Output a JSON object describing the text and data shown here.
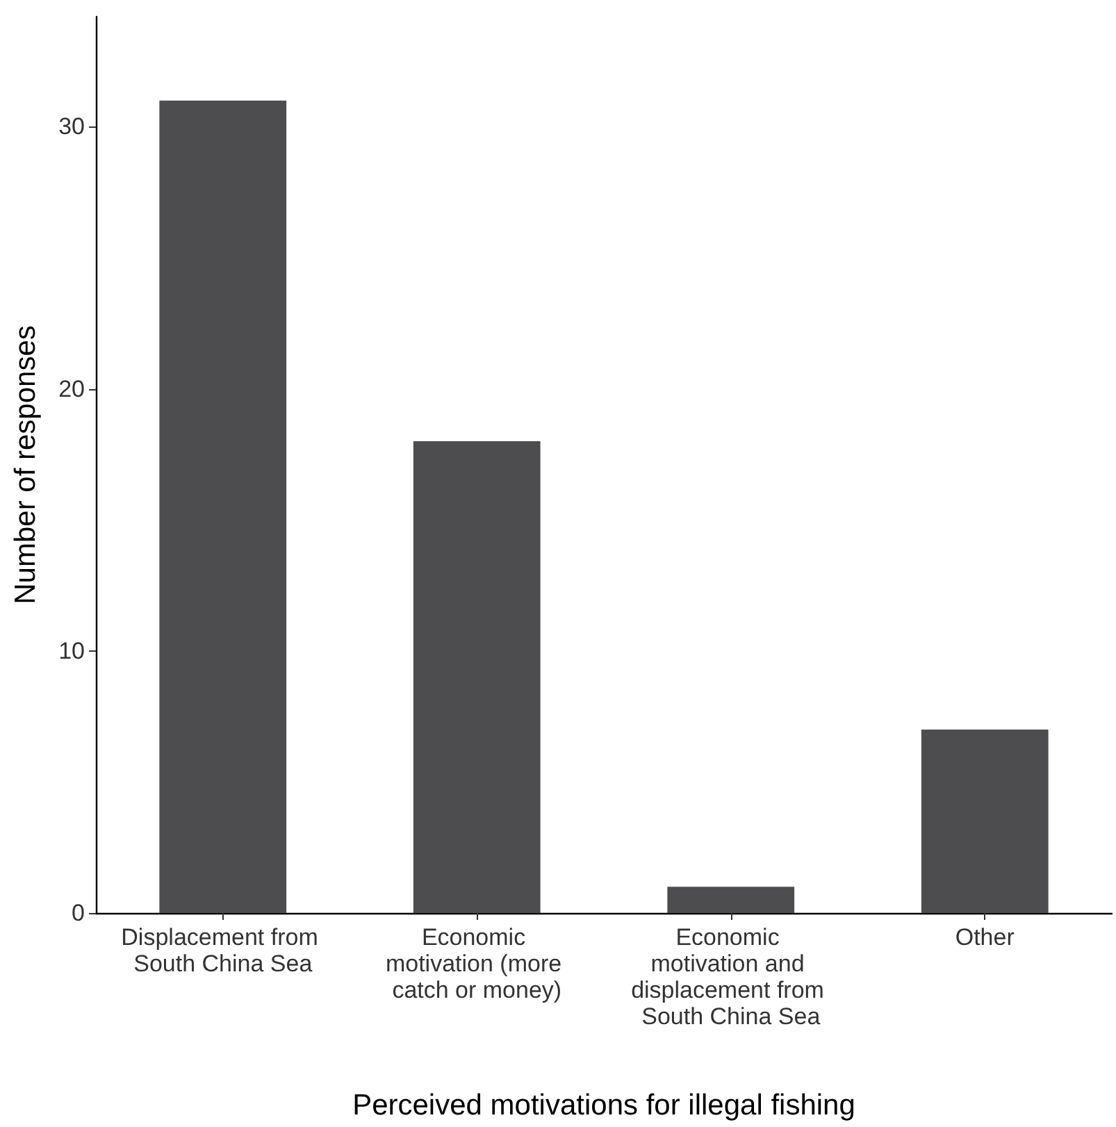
{
  "chart_data": {
    "type": "bar",
    "xlabel": "Perceived motivations for illegal fishing",
    "ylabel": "Number of responses",
    "categories": [
      "Displacement from South China Sea",
      "Economic motivation (more catch or money)",
      "Economic motivation and displacement from South China Sea",
      "Other"
    ],
    "values": [
      31,
      18,
      1,
      7
    ],
    "color": "#4d4d4f",
    "ylim": [
      0,
      34.2
    ],
    "yticks": [
      0,
      10,
      20,
      30
    ],
    "grid": false
  }
}
